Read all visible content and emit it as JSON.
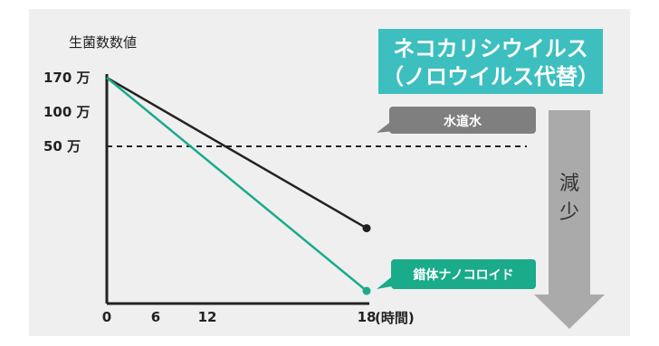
{
  "chart_data": {
    "type": "line",
    "ylabel": "生菌数数値",
    "xunit": "(時間)",
    "x_ticks": [
      "0",
      "6",
      "12",
      "18"
    ],
    "y_ticks": [
      "170 万",
      "100 万",
      "50 万"
    ],
    "xlim": [
      0,
      18
    ],
    "ylim": [
      0,
      170
    ],
    "reference_line": {
      "y": 50,
      "style": "dashed"
    },
    "series": [
      {
        "name": "水道水",
        "x": [
          0,
          18
        ],
        "values": [
          170,
          50
        ],
        "color": "#222222"
      },
      {
        "name": "錯体ナノコロイド",
        "x": [
          0,
          18
        ],
        "values": [
          170,
          0
        ],
        "color": "#1aab8a"
      }
    ]
  },
  "banner": {
    "line1": "ネコカリシウイルス",
    "line2": "（ノロウイルス代替）",
    "color": "#3dbfbf"
  },
  "arrow": {
    "char1": "減",
    "char2": "少",
    "color": "#aaaaaa"
  },
  "tag_colors": {
    "tap_water": "#7f7f7f",
    "nano": "#1aab8a"
  }
}
